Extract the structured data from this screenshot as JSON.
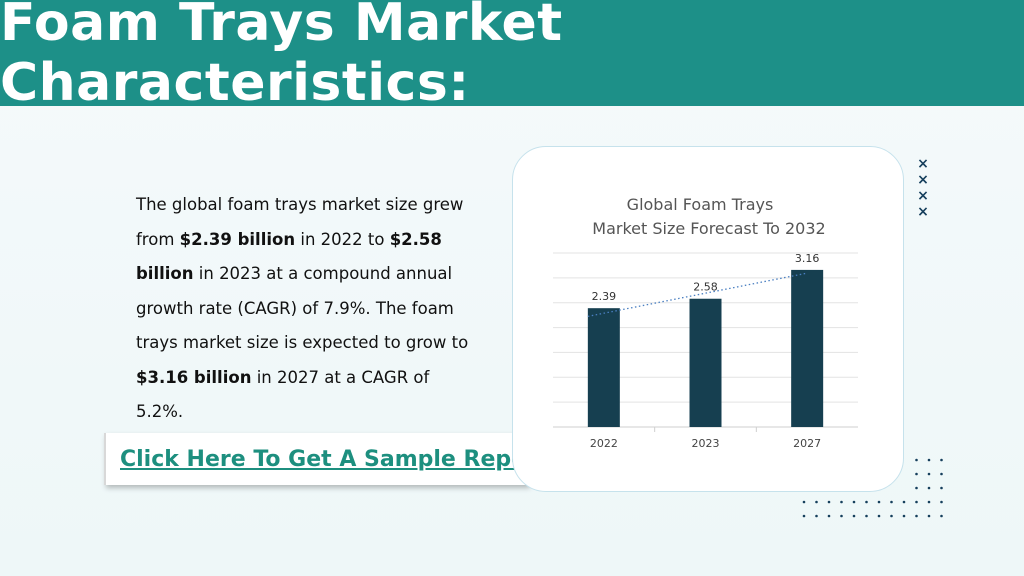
{
  "header": {
    "title": "Foam Trays Market Characteristics:"
  },
  "paragraph": {
    "t1": "The global foam trays market size grew from ",
    "b1": "$2.39 billion",
    "t2": " in 2022 to ",
    "b2": "$2.58 billion",
    "t3": " in 2023 at a compound annual growth rate (CAGR) of 7.9%. The foam trays market size is expected to grow to ",
    "b3": "$3.16 billion",
    "t4": " in 2027 at a CAGR of 5.2%."
  },
  "cta": {
    "label": "Click Here To Get A Sample Report"
  },
  "chart_data": {
    "type": "bar",
    "title": "Global Foam Trays Market Size Forecast To 2032",
    "title_lines": [
      "Global Foam Trays",
      "Market Size Forecast To 2032"
    ],
    "categories": [
      "2022",
      "2023",
      "2027"
    ],
    "values": [
      2.39,
      2.58,
      3.16
    ],
    "data_labels": [
      "2.39",
      "2.58",
      "3.16"
    ],
    "trendline": "dotted linear",
    "ylim": [
      0,
      3.5
    ],
    "grid": true,
    "xlabel": "",
    "ylabel": "",
    "colors": {
      "bar": "#163f50",
      "trend": "#4a7fc1",
      "grid": "#e3e3e3"
    }
  },
  "colors": {
    "banner": "#1d9088",
    "cta_text": "#1d8f7f",
    "accent_dark": "#163f5c"
  },
  "decor": {
    "x_marks_icon": "×"
  }
}
